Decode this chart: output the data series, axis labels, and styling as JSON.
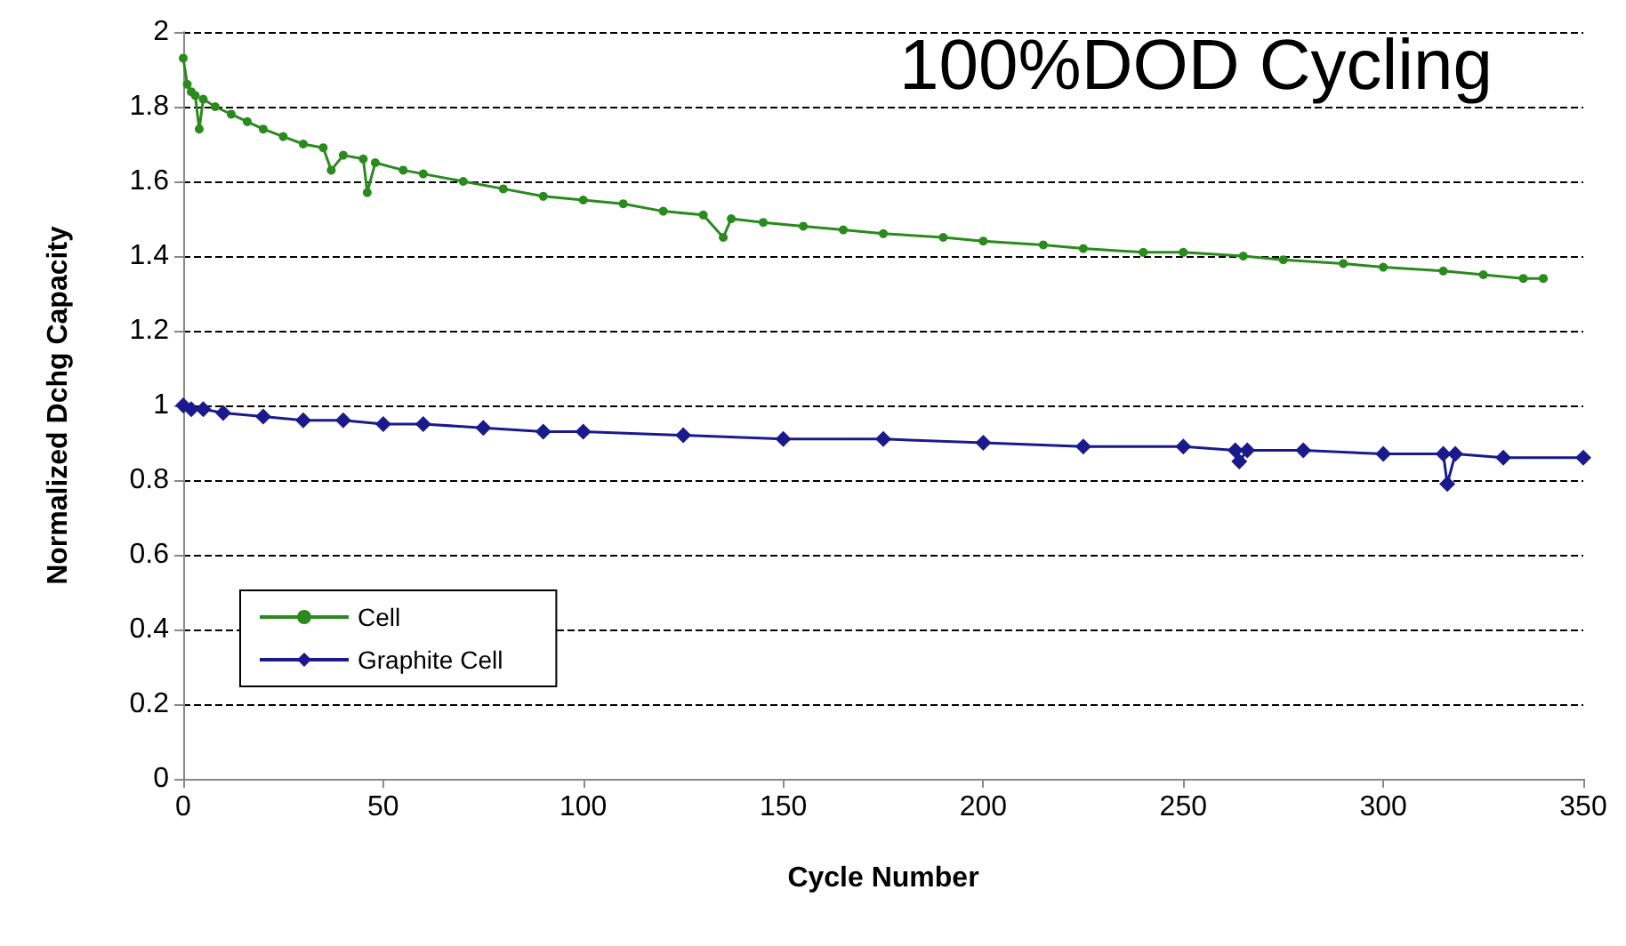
{
  "chart_data": {
    "type": "line",
    "title": "100%DOD Cycling",
    "xlabel": "Cycle Number",
    "ylabel": "Normalized Dchg Capacity",
    "xlim": [
      0,
      350
    ],
    "xticks": [
      0,
      50,
      100,
      150,
      200,
      250,
      300,
      350
    ],
    "ylim": [
      0,
      2
    ],
    "yticks": [
      0,
      0.2,
      0.4,
      0.6,
      0.8,
      1,
      1.2,
      1.4,
      1.6,
      1.8,
      2
    ],
    "grid": "y",
    "legend": "left",
    "series": [
      {
        "name": "Cell",
        "color": "#2a8a1e",
        "marker": "circle",
        "x": [
          0,
          1,
          2,
          3,
          4,
          5,
          8,
          12,
          16,
          20,
          25,
          30,
          35,
          37,
          40,
          45,
          46,
          48,
          55,
          60,
          70,
          80,
          90,
          100,
          110,
          120,
          130,
          135,
          137,
          145,
          155,
          165,
          175,
          190,
          200,
          215,
          225,
          240,
          250,
          265,
          275,
          290,
          300,
          315,
          325,
          335,
          340
        ],
        "values": [
          1.93,
          1.86,
          1.84,
          1.83,
          1.74,
          1.82,
          1.8,
          1.78,
          1.76,
          1.74,
          1.72,
          1.7,
          1.69,
          1.63,
          1.67,
          1.66,
          1.57,
          1.65,
          1.63,
          1.62,
          1.6,
          1.58,
          1.56,
          1.55,
          1.54,
          1.52,
          1.51,
          1.45,
          1.5,
          1.49,
          1.48,
          1.47,
          1.46,
          1.45,
          1.44,
          1.43,
          1.42,
          1.41,
          1.41,
          1.4,
          1.39,
          1.38,
          1.37,
          1.36,
          1.35,
          1.34,
          1.34
        ]
      },
      {
        "name": "Graphite Cell",
        "color": "#1a1a8c",
        "marker": "diamond",
        "x": [
          0,
          2,
          5,
          10,
          20,
          30,
          40,
          50,
          60,
          75,
          90,
          100,
          125,
          150,
          175,
          200,
          225,
          250,
          263,
          264,
          266,
          280,
          300,
          315,
          316,
          318,
          330,
          350
        ],
        "values": [
          1.0,
          0.99,
          0.99,
          0.98,
          0.97,
          0.96,
          0.96,
          0.95,
          0.95,
          0.94,
          0.93,
          0.93,
          0.92,
          0.91,
          0.91,
          0.9,
          0.89,
          0.89,
          0.88,
          0.85,
          0.88,
          0.88,
          0.87,
          0.87,
          0.79,
          0.87,
          0.86,
          0.86
        ]
      }
    ]
  }
}
